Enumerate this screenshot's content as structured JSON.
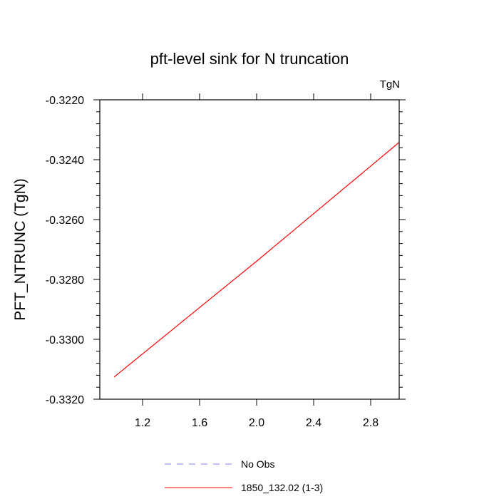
{
  "chart_data": {
    "type": "line",
    "title": "pft-level sink for N truncation",
    "units_label": "TgN",
    "ylabel": "PFT_NTRUNC  (TgN)",
    "xlabel": "",
    "xlim": [
      0.9,
      3.0
    ],
    "ylim": [
      -0.332,
      -0.322
    ],
    "x_ticks": [
      1.2,
      1.6,
      2.0,
      2.4,
      2.8
    ],
    "x_tick_labels": [
      "1.2",
      "1.6",
      "2.0",
      "2.4",
      "2.8"
    ],
    "y_ticks": [
      -0.332,
      -0.33,
      -0.328,
      -0.326,
      -0.324,
      -0.322
    ],
    "y_tick_labels": [
      "-0.3320",
      "-0.3300",
      "-0.3280",
      "-0.3260",
      "-0.3240",
      "-0.3220"
    ],
    "grid": false,
    "legend_position": "bottom",
    "series": [
      {
        "name": "No Obs",
        "color": "#8080ff",
        "dash": true,
        "x": [],
        "y": []
      },
      {
        "name": "1850_132.02 (1-3)",
        "color": "#ff0000",
        "dash": false,
        "x": [
          1.0,
          2.0,
          3.0
        ],
        "y": [
          -0.33126,
          -0.32739,
          -0.32342
        ]
      }
    ]
  }
}
